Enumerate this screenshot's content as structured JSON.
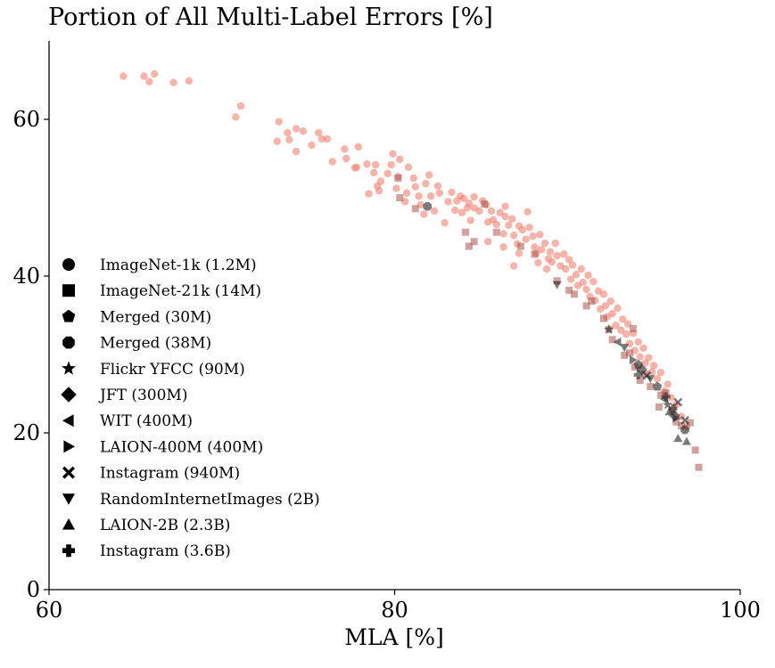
{
  "chart_data": {
    "type": "scatter",
    "title": "Portion of All Multi-Label Errors [%]",
    "xlabel": "MLA [%]",
    "ylabel": "",
    "xlim": [
      60,
      100
    ],
    "ylim": [
      0,
      70
    ],
    "x_ticks": [
      60,
      80,
      100
    ],
    "y_ticks": [
      0,
      20,
      40,
      60
    ],
    "grid": false,
    "legend_position": "left",
    "colors": {
      "imagenet": "#f08070",
      "imagenet21k": "#a9534c",
      "other": "#222222"
    },
    "legend": [
      {
        "label": "ImageNet-1k (1.2M)",
        "marker": "circle"
      },
      {
        "label": "ImageNet-21k (14M)",
        "marker": "square"
      },
      {
        "label": "Merged (30M)",
        "marker": "pentagon"
      },
      {
        "label": "Merged (38M)",
        "marker": "octagon"
      },
      {
        "label": "Flickr YFCC (90M)",
        "marker": "star"
      },
      {
        "label": "JFT (300M)",
        "marker": "diamond"
      },
      {
        "label": "WIT (400M)",
        "marker": "triangle-left"
      },
      {
        "label": "LAION-400M (400M)",
        "marker": "triangle-right"
      },
      {
        "label": "Instagram (940M)",
        "marker": "x-filled"
      },
      {
        "label": "RandomInternetImages (2B)",
        "marker": "triangle-down"
      },
      {
        "label": "LAION-2B (2.3B)",
        "marker": "triangle-up"
      },
      {
        "label": "Instagram (3.6B)",
        "marker": "plus-filled"
      }
    ],
    "series": [
      {
        "name": "ImageNet-1k (1.2M)",
        "marker": "circle",
        "points": [
          [
            64.3,
            65.5
          ],
          [
            65.5,
            65.5
          ],
          [
            65.8,
            64.8
          ],
          [
            66.1,
            65.8
          ],
          [
            67.2,
            64.7
          ],
          [
            68.1,
            64.9
          ],
          [
            70.8,
            60.3
          ],
          [
            71.1,
            61.7
          ],
          [
            73.2,
            57.2
          ],
          [
            73.3,
            59.7
          ],
          [
            73.8,
            58.3
          ],
          [
            73.9,
            57.4
          ],
          [
            74.3,
            58.8
          ],
          [
            74.3,
            55.9
          ],
          [
            74.7,
            58.5
          ],
          [
            75.2,
            56.7
          ],
          [
            75.6,
            58.3
          ],
          [
            75.8,
            57.5
          ],
          [
            76.1,
            57.5
          ],
          [
            76.4,
            54.6
          ],
          [
            77.1,
            56.2
          ],
          [
            77.2,
            55
          ],
          [
            77.7,
            53.8
          ],
          [
            77.8,
            53.9
          ],
          [
            77.9,
            56.5
          ],
          [
            78.4,
            54.3
          ],
          [
            78.5,
            50.5
          ],
          [
            78.8,
            53.2
          ],
          [
            78.9,
            54.2
          ],
          [
            79.1,
            50.9
          ],
          [
            79,
            51.5
          ],
          [
            79.2,
            52.1
          ],
          [
            79.6,
            53.1
          ],
          [
            79.8,
            54.2
          ],
          [
            79.9,
            55.6
          ],
          [
            80.1,
            51.2
          ],
          [
            80.2,
            52.7
          ],
          [
            80.3,
            54.9
          ],
          [
            80.6,
            49.5
          ],
          [
            80.7,
            50.6
          ],
          [
            80.8,
            53.9
          ],
          [
            81.1,
            52.5
          ],
          [
            81.2,
            51.4
          ],
          [
            81.4,
            50.2
          ],
          [
            81.5,
            49.1
          ],
          [
            81.7,
            47.9
          ],
          [
            81.8,
            51.8
          ],
          [
            82.1,
            50.2
          ],
          [
            82,
            52.9
          ],
          [
            82.3,
            48.3
          ],
          [
            82.5,
            51.5
          ],
          [
            82.6,
            50.6
          ],
          [
            82.9,
            46.8
          ],
          [
            83.1,
            49.5
          ],
          [
            83.3,
            50.7
          ],
          [
            83.5,
            48.4
          ],
          [
            83.6,
            49.6
          ],
          [
            83.8,
            50.2
          ],
          [
            84,
            49.9
          ],
          [
            84.2,
            48.7
          ],
          [
            84.3,
            49.3
          ],
          [
            84.4,
            47.1
          ],
          [
            84.6,
            50.1
          ],
          [
            84.9,
            48.3
          ],
          [
            85.1,
            49.6
          ],
          [
            85.3,
            49.1
          ],
          [
            85.4,
            46.9
          ],
          [
            85.6,
            48.3
          ],
          [
            85.7,
            47.2
          ],
          [
            85.9,
            46.6
          ],
          [
            86.1,
            48.1
          ],
          [
            86.3,
            45.4
          ],
          [
            86.4,
            47.6
          ],
          [
            86.6,
            46.5
          ],
          [
            86.8,
            47.3
          ],
          [
            86.9,
            45.2
          ],
          [
            87.1,
            44.1
          ],
          [
            87.2,
            46.4
          ],
          [
            87.4,
            45.9
          ],
          [
            87.6,
            44.7
          ],
          [
            87.8,
            46.2
          ],
          [
            88,
            45.1
          ],
          [
            88.1,
            43.7
          ],
          [
            88.2,
            42.9
          ],
          [
            88.4,
            45.3
          ],
          [
            88.5,
            43.4
          ],
          [
            88.7,
            44.2
          ],
          [
            88.9,
            42.2
          ],
          [
            89,
            43.1
          ],
          [
            89.1,
            41.8
          ],
          [
            89.3,
            44.2
          ],
          [
            89.4,
            42.6
          ],
          [
            89.6,
            41.3
          ],
          [
            89.8,
            42.8
          ],
          [
            89.9,
            40.9
          ],
          [
            90.1,
            42.1
          ],
          [
            90.2,
            39.6
          ],
          [
            90.3,
            41.4
          ],
          [
            90.5,
            40.2
          ],
          [
            90.6,
            38.8
          ],
          [
            90.8,
            40.9
          ],
          [
            90.9,
            39.2
          ],
          [
            91.1,
            38.3
          ],
          [
            91.2,
            40.1
          ],
          [
            91.3,
            37.4
          ],
          [
            91.5,
            39.3
          ],
          [
            91.6,
            36.9
          ],
          [
            91.8,
            38.1
          ],
          [
            91.9,
            35.8
          ],
          [
            92.1,
            37.7
          ],
          [
            92.2,
            36.2
          ],
          [
            92.3,
            34.8
          ],
          [
            92.5,
            36.8
          ],
          [
            92.6,
            35.2
          ],
          [
            92.8,
            33.7
          ],
          [
            92.9,
            35.9
          ],
          [
            93.1,
            33.1
          ],
          [
            93.2,
            34.5
          ],
          [
            93.4,
            32.6
          ],
          [
            93.5,
            33.9
          ],
          [
            93.6,
            31.4
          ],
          [
            93.8,
            32.7
          ],
          [
            93.9,
            30.5
          ],
          [
            94.1,
            31.6
          ],
          [
            94.2,
            29.7
          ],
          [
            94.4,
            30.8
          ],
          [
            94.5,
            28.9
          ],
          [
            94.7,
            29.6
          ],
          [
            94.9,
            27.8
          ],
          [
            95,
            28.6
          ],
          [
            95.2,
            26.9
          ],
          [
            95.4,
            27.7
          ],
          [
            95.6,
            25.3
          ],
          [
            95.8,
            26.2
          ],
          [
            96,
            24.5
          ],
          [
            96.3,
            23.6
          ],
          [
            96.6,
            22.1
          ],
          [
            96.9,
            20.8
          ],
          [
            85.4,
            44.4
          ],
          [
            86.3,
            43.7
          ],
          [
            87.2,
            42.9
          ],
          [
            86.9,
            41.3
          ],
          [
            88.3,
            41.7
          ],
          [
            88.8,
            40.9
          ],
          [
            84.6,
            48.7
          ],
          [
            83.9,
            48.1
          ],
          [
            87.7,
            48.2
          ],
          [
            86.4,
            48.9
          ]
        ]
      },
      {
        "name": "ImageNet-21k (14M)",
        "marker": "square",
        "points": [
          [
            80.2,
            52.5
          ],
          [
            80.3,
            50
          ],
          [
            81.2,
            48.6
          ],
          [
            84.1,
            45.6
          ],
          [
            84.3,
            43.8
          ],
          [
            84.6,
            44.4
          ],
          [
            85.9,
            45.6
          ],
          [
            87.3,
            43.8
          ],
          [
            88.1,
            42.8
          ],
          [
            89.4,
            39.4
          ],
          [
            90.1,
            38.2
          ],
          [
            90.4,
            37.7
          ],
          [
            91.1,
            36.2
          ],
          [
            91.4,
            36.8
          ],
          [
            92.1,
            34.6
          ],
          [
            92.4,
            33.2
          ],
          [
            92.6,
            31.9
          ],
          [
            93.3,
            29.9
          ],
          [
            93.6,
            30.2
          ],
          [
            93.9,
            28.4
          ],
          [
            94.2,
            26.7
          ],
          [
            94.5,
            27.5
          ],
          [
            94.8,
            25.9
          ],
          [
            95.3,
            23.3
          ],
          [
            95.4,
            24.8
          ],
          [
            96.1,
            22.9
          ],
          [
            96.3,
            21.4
          ],
          [
            96.6,
            20.9
          ],
          [
            97.1,
            21.3
          ],
          [
            97.4,
            17.8
          ],
          [
            97.6,
            15.6
          ],
          [
            93.8,
            33.3
          ],
          [
            95.7,
            25.1
          ],
          [
            85.2,
            49.2
          ]
        ]
      },
      {
        "name": "Merged (30M)",
        "marker": "pentagon",
        "points": [
          [
            94.1,
            28.7
          ],
          [
            95.2,
            25.9
          ]
        ]
      },
      {
        "name": "Merged (38M)",
        "marker": "octagon",
        "points": [
          [
            81.9,
            48.9
          ],
          [
            96.8,
            20.4
          ]
        ]
      },
      {
        "name": "Flickr YFCC (90M)",
        "marker": "star",
        "points": [
          [
            92.4,
            33.2
          ],
          [
            95.8,
            23.6
          ]
        ]
      },
      {
        "name": "JFT (300M)",
        "marker": "diamond",
        "points": [
          [
            94.3,
            28.1
          ],
          [
            96.2,
            22.2
          ]
        ]
      },
      {
        "name": "WIT (400M)",
        "marker": "triangle-left",
        "points": [
          [
            92.9,
            31.6
          ],
          [
            95.6,
            24.3
          ]
        ]
      },
      {
        "name": "LAION-400M (400M)",
        "marker": "triangle-right",
        "points": [
          [
            93.8,
            29.3
          ],
          [
            96.3,
            21.9
          ]
        ]
      },
      {
        "name": "Instagram (940M)",
        "marker": "x-filled",
        "points": [
          [
            94.6,
            27.3
          ],
          [
            96.4,
            23.9
          ],
          [
            96.8,
            21.6
          ]
        ]
      },
      {
        "name": "RandomInternetImages (2B)",
        "marker": "triangle-down",
        "points": [
          [
            89.4,
            38.9
          ],
          [
            93.3,
            30.9
          ],
          [
            94.8,
            26.9
          ]
        ]
      },
      {
        "name": "LAION-2B (2.3B)",
        "marker": "triangle-up",
        "points": [
          [
            95.9,
            22.7
          ],
          [
            96.4,
            19.3
          ],
          [
            96.9,
            18.9
          ]
        ]
      },
      {
        "name": "Instagram (3.6B)",
        "marker": "plus-filled",
        "points": [
          [
            94.1,
            27.4
          ],
          [
            95.7,
            24.6
          ],
          [
            96.1,
            23.1
          ]
        ]
      }
    ]
  }
}
